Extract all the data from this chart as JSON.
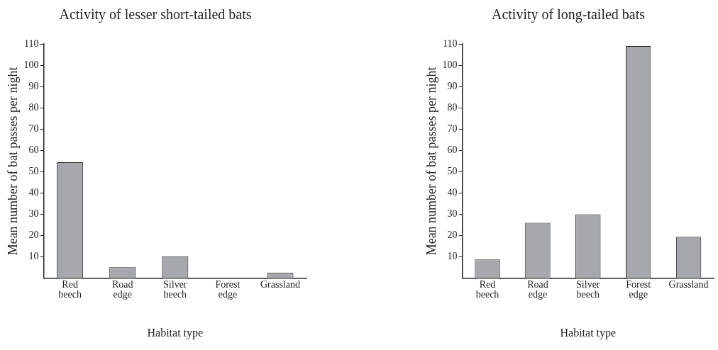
{
  "chart_data": [
    {
      "type": "bar",
      "title": "Activity of lesser short-tailed bats",
      "xlabel": "Habitat type",
      "ylabel": "Mean number of bat passes per night",
      "categories": [
        "Red beech",
        "Road edge",
        "Silver beech",
        "Forest edge",
        "Grassland"
      ],
      "values": [
        54.5,
        5.2,
        10.3,
        0,
        2.7
      ],
      "color": "#a7a8ab",
      "ylim": [
        0,
        110
      ],
      "yticks": [
        10,
        20,
        30,
        40,
        50,
        60,
        70,
        80,
        90,
        100,
        110
      ]
    },
    {
      "type": "bar",
      "title": "Activity of long-tailed bats",
      "xlabel": "Habitat type",
      "ylabel": "Mean number of bat passes per night",
      "categories": [
        "Red beech",
        "Road edge",
        "Silver beech",
        "Forest edge",
        "Grassland"
      ],
      "values": [
        8.8,
        26,
        30,
        109,
        19.5
      ],
      "color": "#a7a8ab",
      "ylim": [
        0,
        110
      ],
      "yticks": [
        10,
        20,
        30,
        40,
        50,
        60,
        70,
        80,
        90,
        100,
        110
      ]
    }
  ]
}
